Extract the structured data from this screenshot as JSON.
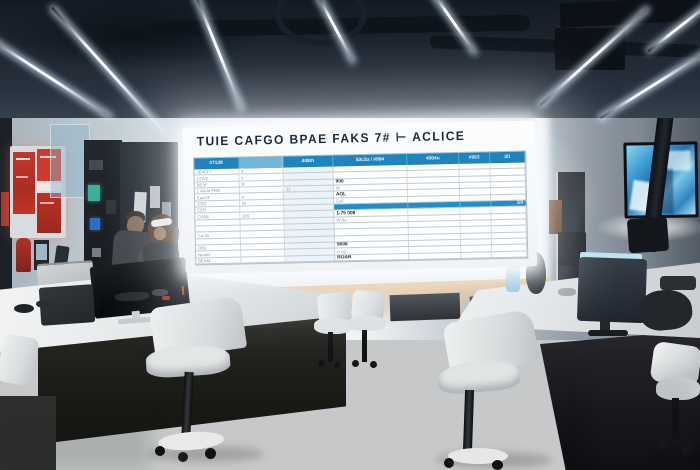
{
  "board": {
    "title": "TUIE CAFGO BPAE FAKS 7# ⊢ ACLICE",
    "table": {
      "headers": [
        "#7138",
        "",
        "408th",
        "53c2u / #994",
        "4004u",
        "#953",
        "IZI"
      ],
      "col_widths_pct": [
        13.5,
        13.5,
        15,
        22.5,
        15.5,
        9.5,
        10.5
      ],
      "rows": [
        {
          "cells": [
            "JEACFI",
            "a",
            "",
            "",
            "",
            "",
            ""
          ]
        },
        {
          "cells": [
            "COVE",
            "v",
            "",
            "",
            "",
            "",
            ""
          ]
        },
        {
          "cells": [
            "BEAF",
            "M",
            "",
            "900",
            "",
            "",
            ""
          ],
          "strong": [
            3
          ]
        },
        {
          "cells": [
            "1 AA AI FI98",
            "",
            "11",
            "W",
            "",
            "",
            ""
          ]
        },
        {
          "cells": [
            "EanOF",
            "a",
            "",
            "AOL",
            "",
            "",
            ""
          ],
          "strong": [
            3
          ]
        },
        {
          "cells": [
            "2002",
            "ba",
            "",
            "CuF",
            "",
            "",
            ""
          ]
        },
        {
          "cells": [
            "CER",
            "",
            "",
            "",
            "",
            "",
            "EII"
          ],
          "highlight": true
        },
        {
          "cells": [
            "CRNE",
            "100",
            "",
            "1-75 008",
            "",
            "",
            ""
          ],
          "strong": [
            3
          ]
        },
        {
          "cells": [
            "",
            "",
            "",
            "W-9a",
            "",
            "",
            ""
          ]
        },
        {
          "cells": [
            ". . .",
            "",
            "",
            "",
            "",
            "",
            ""
          ]
        },
        {
          "cells": [
            "CA 90",
            "",
            "",
            "",
            "",
            "",
            ""
          ]
        },
        {
          "cells": [
            "",
            "",
            "",
            "",
            "",
            "",
            ""
          ]
        },
        {
          "cells": [
            "ORu",
            "",
            "",
            "9008",
            "",
            "",
            ""
          ],
          "strong": [
            3
          ]
        },
        {
          "cells": [
            "NearN",
            "",
            "",
            "P-02",
            "",
            "",
            ""
          ]
        },
        {
          "cells": [
            "BEAM",
            "",
            "",
            "ROAR",
            "",
            "",
            ""
          ],
          "strong": [
            3
          ]
        }
      ]
    },
    "colors": {
      "header_blue": "#1f84bd",
      "header_blue_light": "#74b6d7",
      "highlight_blue": "#1f8ecb",
      "title_ink": "#1d2a38"
    }
  },
  "environment_colors": {
    "accent_red": "#c0392b",
    "tv_blue": "#4aa8d8",
    "warm_glow": "#e0b57e",
    "led_white": "#f2f7fc"
  }
}
